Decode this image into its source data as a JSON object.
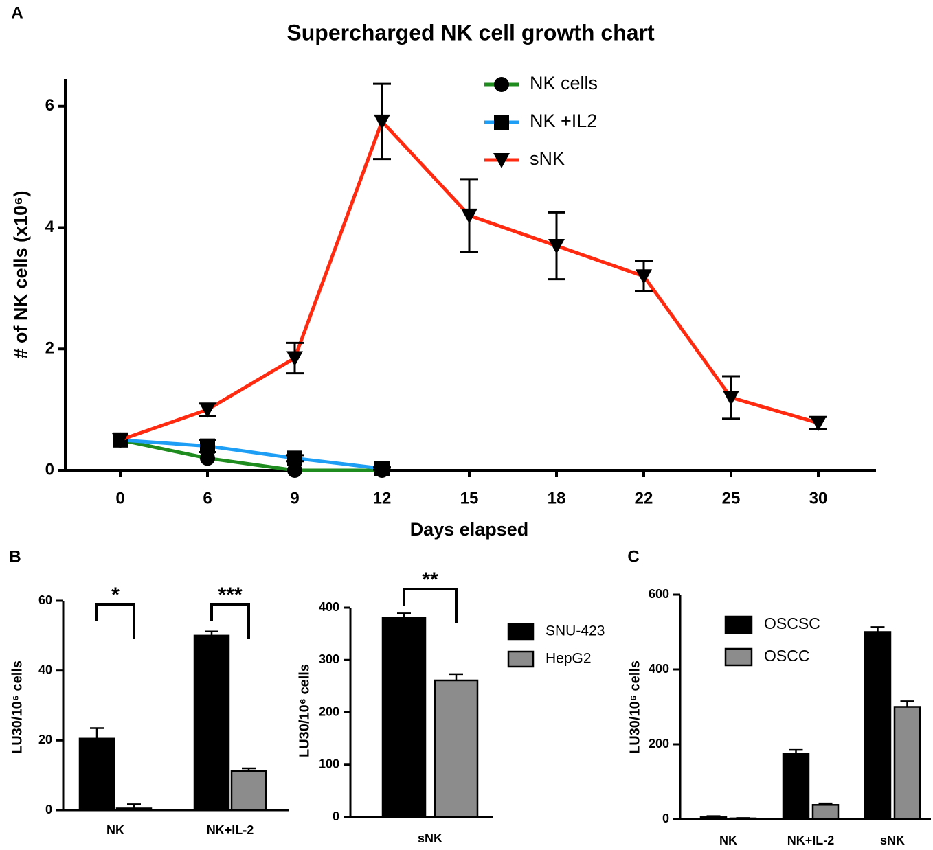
{
  "chart_data": [
    {
      "type": "line",
      "panel": "A",
      "title": "Supercharged NK cell growth chart",
      "xlabel": "Days elapsed",
      "ylabel": "# of NK cells (x10⁶)",
      "categories": [
        "0",
        "6",
        "9",
        "12",
        "15",
        "18",
        "22",
        "25",
        "30"
      ],
      "ylim": [
        0,
        6.45
      ],
      "yticks": [
        0,
        2,
        4,
        6
      ],
      "legend": "top-center",
      "series": [
        {
          "name": "NK cells",
          "color": "#1e8c1e",
          "marker": "circle",
          "values": [
            0.5,
            0.2,
            0,
            0,
            null,
            null,
            null,
            null,
            null
          ]
        },
        {
          "name": "NK +IL2",
          "color": "#1e9ef5",
          "marker": "square",
          "values": [
            0.5,
            0.4,
            0.2,
            0.03,
            null,
            null,
            null,
            null,
            null
          ],
          "errors": [
            0,
            0.1,
            0.05,
            0.02,
            null,
            null,
            null,
            null,
            null
          ]
        },
        {
          "name": "sNK",
          "color": "#ff2a10",
          "marker": "triangle-down",
          "values": [
            0.5,
            1.0,
            1.85,
            5.75,
            4.2,
            3.7,
            3.2,
            1.2,
            0.78
          ],
          "errors": [
            0,
            0.1,
            0.25,
            0.62,
            0.6,
            0.55,
            0.25,
            0.35,
            0.1
          ]
        }
      ]
    },
    {
      "type": "bar",
      "panel": "B",
      "ylabel": "LU30/10⁶ cells",
      "categories": [
        "NK",
        "NK+IL-2"
      ],
      "ylim": [
        0,
        60
      ],
      "yticks": [
        0,
        20,
        40,
        60
      ],
      "annotations": [
        "*",
        "***"
      ],
      "series": [
        {
          "name": "SNU-423",
          "color": "#000000",
          "values": [
            20.5,
            50
          ],
          "errors": [
            3,
            1.2
          ]
        },
        {
          "name": "HepG2",
          "color": "#8c8c8c",
          "values": [
            0.5,
            11.2
          ],
          "errors": [
            1.2,
            0.8
          ]
        }
      ]
    },
    {
      "type": "bar",
      "ylabel": "LU30/10⁶ cells",
      "legend": "right",
      "categories": [
        "sNK"
      ],
      "ylim": [
        0,
        400
      ],
      "yticks": [
        0,
        100,
        200,
        300,
        400
      ],
      "annotations": [
        "**"
      ],
      "series": [
        {
          "name": "SNU-423",
          "color": "#000000",
          "values": [
            381
          ],
          "errors": [
            8
          ]
        },
        {
          "name": "HepG2",
          "color": "#8c8c8c",
          "values": [
            261
          ],
          "errors": [
            12
          ]
        }
      ]
    },
    {
      "type": "bar",
      "panel": "C",
      "ylabel": "LU30/10⁶ cells",
      "legend": "top-left",
      "categories": [
        "NK",
        "NK+IL-2",
        "sNK"
      ],
      "ylim": [
        0,
        600
      ],
      "yticks": [
        0,
        200,
        400,
        600
      ],
      "series": [
        {
          "name": "OSCSC",
          "color": "#000000",
          "values": [
            5,
            175,
            500
          ],
          "errors": [
            3,
            10,
            13
          ]
        },
        {
          "name": "OSCC",
          "color": "#8c8c8c",
          "values": [
            2,
            38,
            300
          ],
          "errors": [
            1,
            4,
            15
          ]
        }
      ]
    }
  ]
}
